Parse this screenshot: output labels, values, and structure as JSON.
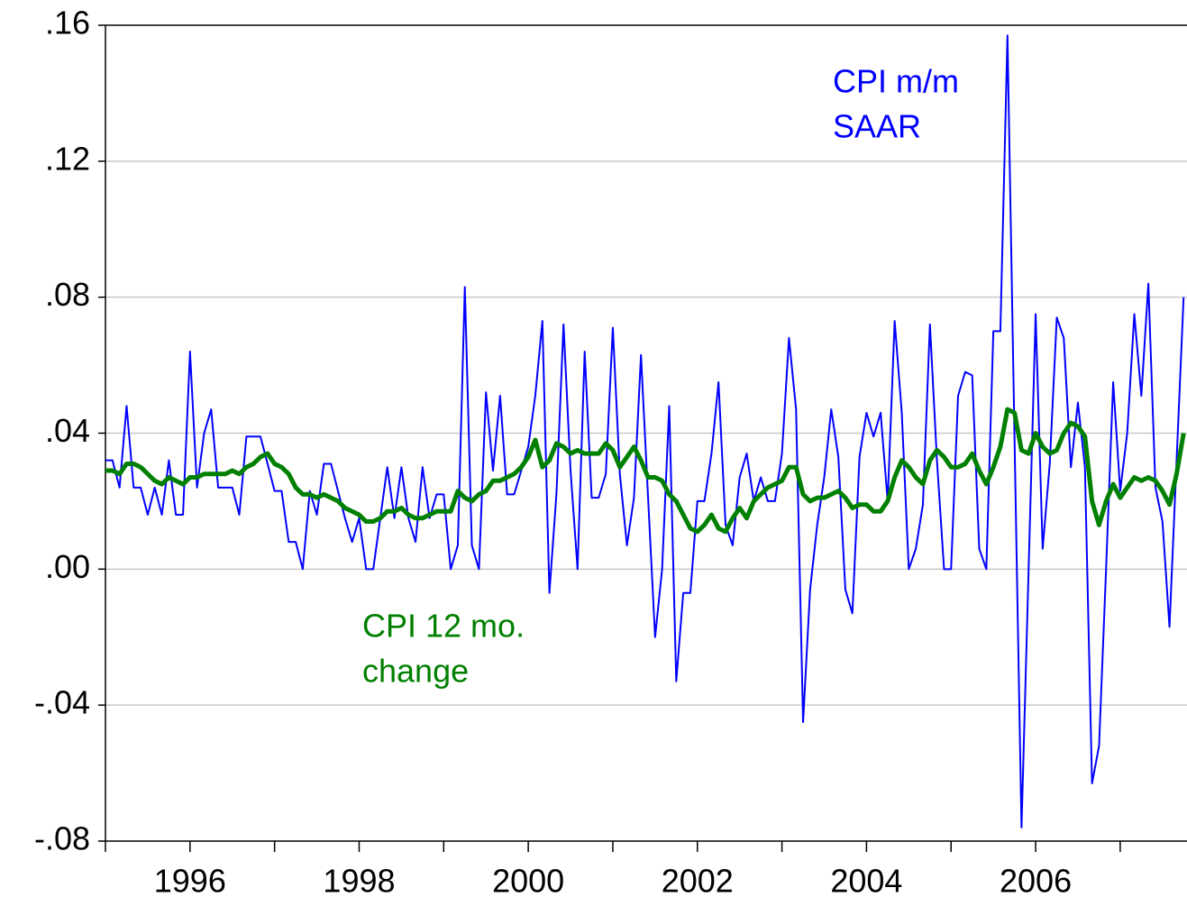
{
  "chart_data": {
    "type": "line",
    "x": [
      1995,
      1995.083,
      1995.167,
      1995.25,
      1995.333,
      1995.417,
      1995.5,
      1995.583,
      1995.667,
      1995.75,
      1995.833,
      1995.917,
      1996,
      1996.083,
      1996.167,
      1996.25,
      1996.333,
      1996.417,
      1996.5,
      1996.583,
      1996.667,
      1996.75,
      1996.833,
      1996.917,
      1997,
      1997.083,
      1997.167,
      1997.25,
      1997.333,
      1997.417,
      1997.5,
      1997.583,
      1997.667,
      1997.75,
      1997.833,
      1997.917,
      1998,
      1998.083,
      1998.167,
      1998.25,
      1998.333,
      1998.417,
      1998.5,
      1998.583,
      1998.667,
      1998.75,
      1998.833,
      1998.917,
      1999,
      1999.083,
      1999.167,
      1999.25,
      1999.333,
      1999.417,
      1999.5,
      1999.583,
      1999.667,
      1999.75,
      1999.833,
      1999.917,
      2000,
      2000.083,
      2000.167,
      2000.25,
      2000.333,
      2000.417,
      2000.5,
      2000.583,
      2000.667,
      2000.75,
      2000.833,
      2000.917,
      2001,
      2001.083,
      2001.167,
      2001.25,
      2001.333,
      2001.417,
      2001.5,
      2001.583,
      2001.667,
      2001.75,
      2001.833,
      2001.917,
      2002,
      2002.083,
      2002.167,
      2002.25,
      2002.333,
      2002.417,
      2002.5,
      2002.583,
      2002.667,
      2002.75,
      2002.833,
      2002.917,
      2003,
      2003.083,
      2003.167,
      2003.25,
      2003.333,
      2003.417,
      2003.5,
      2003.583,
      2003.667,
      2003.75,
      2003.833,
      2003.917,
      2004,
      2004.083,
      2004.167,
      2004.25,
      2004.333,
      2004.417,
      2004.5,
      2004.583,
      2004.667,
      2004.75,
      2004.833,
      2004.917,
      2005,
      2005.083,
      2005.167,
      2005.25,
      2005.333,
      2005.417,
      2005.5,
      2005.583,
      2005.667,
      2005.75,
      2005.833,
      2005.917,
      2006,
      2006.083,
      2006.167,
      2006.25,
      2006.333,
      2006.417,
      2006.5,
      2006.583,
      2006.667,
      2006.75,
      2006.833,
      2006.917,
      2007,
      2007.083,
      2007.167,
      2007.25,
      2007.333,
      2007.417,
      2007.5,
      2007.583,
      2007.667,
      2007.75
    ],
    "series": [
      {
        "color": "#0000ff",
        "width": 2,
        "values": [
          0.032,
          0.032,
          0.024,
          0.048,
          0.024,
          0.024,
          0.016,
          0.024,
          0.016,
          0.032,
          0.016,
          0.016,
          0.064,
          0.024,
          0.04,
          0.047,
          0.024,
          0.024,
          0.024,
          0.016,
          0.039,
          0.039,
          0.039,
          0.031,
          0.023,
          0.023,
          0.008,
          0.008,
          0.0,
          0.023,
          0.016,
          0.031,
          0.031,
          0.023,
          0.015,
          0.008,
          0.015,
          0.0,
          0.0,
          0.015,
          0.03,
          0.015,
          0.03,
          0.015,
          0.008,
          0.03,
          0.015,
          0.022,
          0.022,
          0.0,
          0.007,
          0.083,
          0.007,
          0.0,
          0.052,
          0.029,
          0.051,
          0.022,
          0.022,
          0.029,
          0.036,
          0.051,
          0.073,
          -0.007,
          0.022,
          0.072,
          0.029,
          0.0,
          0.064,
          0.021,
          0.021,
          0.028,
          0.071,
          0.028,
          0.007,
          0.021,
          0.063,
          0.021,
          -0.02,
          0.0,
          0.048,
          -0.033,
          -0.007,
          -0.007,
          0.02,
          0.02,
          0.034,
          0.055,
          0.013,
          0.007,
          0.027,
          0.034,
          0.02,
          0.027,
          0.02,
          0.02,
          0.034,
          0.068,
          0.047,
          -0.045,
          -0.006,
          0.013,
          0.027,
          0.047,
          0.033,
          -0.006,
          -0.013,
          0.033,
          0.046,
          0.039,
          0.046,
          0.02,
          0.073,
          0.046,
          0.0,
          0.006,
          0.019,
          0.072,
          0.032,
          0.0,
          0.0,
          0.051,
          0.058,
          0.057,
          0.006,
          0.0,
          0.07,
          0.07,
          0.157,
          0.039,
          -0.076,
          0.0,
          0.075,
          0.006,
          0.031,
          0.074,
          0.068,
          0.03,
          0.049,
          0.03,
          -0.063,
          -0.052,
          0.0,
          0.055,
          0.023,
          0.04,
          0.075,
          0.051,
          0.084,
          0.024,
          0.014,
          -0.017,
          0.032,
          0.08
        ]
      },
      {
        "color": "#008000",
        "width": 5,
        "values": [
          0.029,
          0.029,
          0.028,
          0.031,
          0.031,
          0.03,
          0.028,
          0.026,
          0.025,
          0.027,
          0.026,
          0.025,
          0.027,
          0.027,
          0.028,
          0.028,
          0.028,
          0.028,
          0.029,
          0.028,
          0.03,
          0.031,
          0.033,
          0.034,
          0.031,
          0.03,
          0.028,
          0.024,
          0.022,
          0.022,
          0.021,
          0.022,
          0.021,
          0.02,
          0.018,
          0.017,
          0.016,
          0.014,
          0.014,
          0.015,
          0.017,
          0.017,
          0.018,
          0.016,
          0.015,
          0.015,
          0.016,
          0.017,
          0.017,
          0.017,
          0.023,
          0.021,
          0.02,
          0.022,
          0.023,
          0.026,
          0.026,
          0.027,
          0.028,
          0.03,
          0.033,
          0.038,
          0.03,
          0.032,
          0.037,
          0.036,
          0.034,
          0.035,
          0.034,
          0.034,
          0.034,
          0.037,
          0.035,
          0.03,
          0.033,
          0.036,
          0.032,
          0.027,
          0.027,
          0.026,
          0.022,
          0.02,
          0.016,
          0.012,
          0.011,
          0.013,
          0.016,
          0.012,
          0.011,
          0.015,
          0.018,
          0.015,
          0.02,
          0.022,
          0.024,
          0.025,
          0.026,
          0.03,
          0.03,
          0.022,
          0.02,
          0.021,
          0.021,
          0.022,
          0.023,
          0.021,
          0.018,
          0.019,
          0.019,
          0.017,
          0.017,
          0.02,
          0.027,
          0.032,
          0.03,
          0.027,
          0.025,
          0.032,
          0.035,
          0.033,
          0.03,
          0.03,
          0.031,
          0.034,
          0.029,
          0.025,
          0.03,
          0.036,
          0.047,
          0.046,
          0.035,
          0.034,
          0.04,
          0.036,
          0.034,
          0.035,
          0.04,
          0.043,
          0.042,
          0.039,
          0.02,
          0.013,
          0.02,
          0.025,
          0.021,
          0.024,
          0.027,
          0.026,
          0.027,
          0.026,
          0.023,
          0.019,
          0.028,
          0.04
        ]
      }
    ],
    "annotations": [
      {
        "lines": [
          "CPI m/m",
          "SAAR"
        ],
        "color": "#0000ff"
      },
      {
        "lines": [
          "CPI 12 mo.",
          "change"
        ],
        "color": "#008000"
      }
    ],
    "xlim": [
      1995,
      2007.79
    ],
    "xticks": [
      {
        "value": 1996,
        "label": "1996"
      },
      {
        "value": 1998,
        "label": "1998"
      },
      {
        "value": 2000,
        "label": "2000"
      },
      {
        "value": 2002,
        "label": "2002"
      },
      {
        "value": 2004,
        "label": "2004"
      },
      {
        "value": 2006,
        "label": "2006"
      }
    ],
    "x_minor_ticks": [
      1995,
      1997,
      1999,
      2001,
      2003,
      2005,
      2007
    ],
    "ylim": [
      -0.08,
      0.16
    ],
    "yticks": [
      {
        "value": 0.16,
        "label": ".16"
      },
      {
        "value": 0.12,
        "label": ".12"
      },
      {
        "value": 0.08,
        "label": ".08"
      },
      {
        "value": 0.04,
        "label": ".04"
      },
      {
        "value": 0,
        "label": ".00"
      },
      {
        "value": -0.04,
        "label": "-.04"
      },
      {
        "value": -0.08,
        "label": "-.08"
      }
    ],
    "grid": true
  }
}
